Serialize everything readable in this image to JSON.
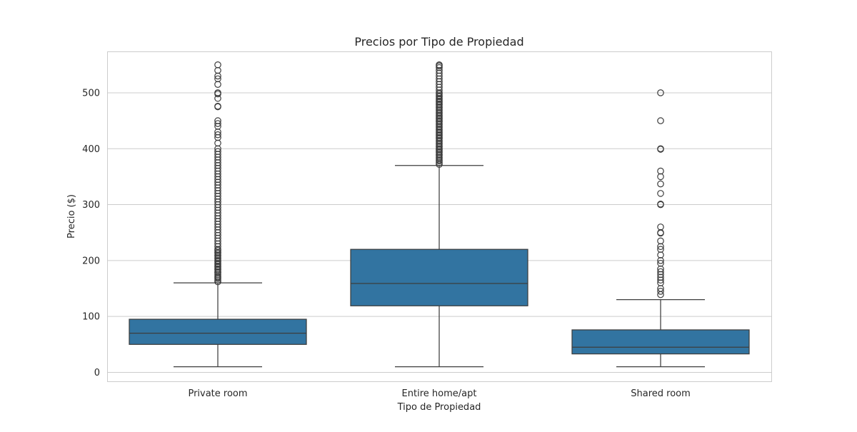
{
  "chart_data": {
    "type": "box",
    "title": "Precios por Tipo de Propiedad",
    "xlabel": "Tipo de Propiedad",
    "ylabel": "Precio ($)",
    "ylim": [
      -16,
      574
    ],
    "yticks": [
      0,
      100,
      200,
      300,
      400,
      500
    ],
    "ytick_labels": [
      "0",
      "100",
      "200",
      "300",
      "400",
      "500"
    ],
    "grid": true,
    "colors": {
      "box": "#3274a1",
      "line": "#3d3d3d",
      "grid": "#cccccc",
      "frame": "#cccccc"
    },
    "categories": [
      "Private room",
      "Entire home/apt",
      "Shared room"
    ],
    "boxes": [
      {
        "category": "Private room",
        "whisker_low": 10,
        "q1": 50,
        "median": 70,
        "q3": 95,
        "whisker_high": 160,
        "outliers": [
          162,
          165,
          168,
          170,
          172,
          175,
          178,
          180,
          183,
          185,
          188,
          190,
          193,
          195,
          198,
          200,
          203,
          205,
          208,
          210,
          213,
          215,
          218,
          220,
          225,
          230,
          235,
          240,
          245,
          250,
          255,
          260,
          265,
          270,
          275,
          280,
          285,
          290,
          295,
          300,
          305,
          310,
          315,
          320,
          325,
          330,
          335,
          340,
          345,
          350,
          355,
          360,
          365,
          370,
          375,
          380,
          385,
          390,
          395,
          400,
          410,
          420,
          425,
          430,
          440,
          445,
          450,
          475,
          476,
          490,
          498,
          500,
          515,
          525,
          530,
          540,
          550
        ]
      },
      {
        "category": "Entire home/apt",
        "whisker_low": 10,
        "q1": 119,
        "median": 159,
        "q3": 220,
        "whisker_high": 370,
        "outliers": [
          372,
          375,
          378,
          380,
          383,
          385,
          388,
          390,
          393,
          395,
          398,
          400,
          403,
          405,
          408,
          410,
          413,
          415,
          418,
          420,
          423,
          425,
          428,
          430,
          433,
          435,
          438,
          440,
          443,
          445,
          448,
          450,
          453,
          455,
          458,
          460,
          463,
          465,
          468,
          470,
          473,
          475,
          478,
          480,
          483,
          485,
          488,
          490,
          493,
          495,
          498,
          500,
          505,
          510,
          515,
          520,
          525,
          530,
          535,
          540,
          545,
          548,
          550
        ]
      },
      {
        "category": "Shared room",
        "whisker_low": 10,
        "q1": 33,
        "median": 45,
        "q3": 76,
        "whisker_high": 130,
        "outliers": [
          139,
          145,
          150,
          160,
          165,
          170,
          175,
          180,
          185,
          195,
          200,
          210,
          220,
          225,
          235,
          249,
          250,
          260,
          300,
          301,
          320,
          337,
          350,
          360,
          399,
          400,
          450,
          500
        ]
      }
    ]
  }
}
